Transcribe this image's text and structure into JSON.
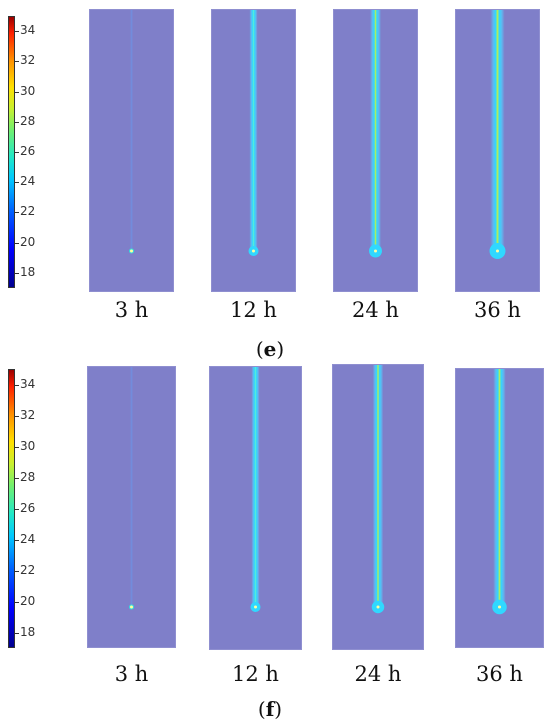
{
  "colorbar": {
    "ticks": [
      "34",
      "32",
      "30",
      "28",
      "26",
      "24",
      "22",
      "20",
      "18"
    ]
  },
  "panels": [
    {
      "id": "e",
      "label": "e",
      "frames": [
        {
          "time": "3 h",
          "intensity": 0.0
        },
        {
          "time": "12 h",
          "intensity": 0.4
        },
        {
          "time": "24 h",
          "intensity": 0.7
        },
        {
          "time": "36 h",
          "intensity": 1.0
        }
      ]
    },
    {
      "id": "f",
      "label": "f",
      "frames": [
        {
          "time": "3 h",
          "intensity": 0.0
        },
        {
          "time": "12 h",
          "intensity": 0.4
        },
        {
          "time": "24 h",
          "intensity": 0.65
        },
        {
          "time": "36 h",
          "intensity": 0.85
        }
      ]
    }
  ],
  "colors": {
    "background_field": "#7f7fc9",
    "plume_core": "#c8f040",
    "plume_edge": "#30d8ff"
  }
}
